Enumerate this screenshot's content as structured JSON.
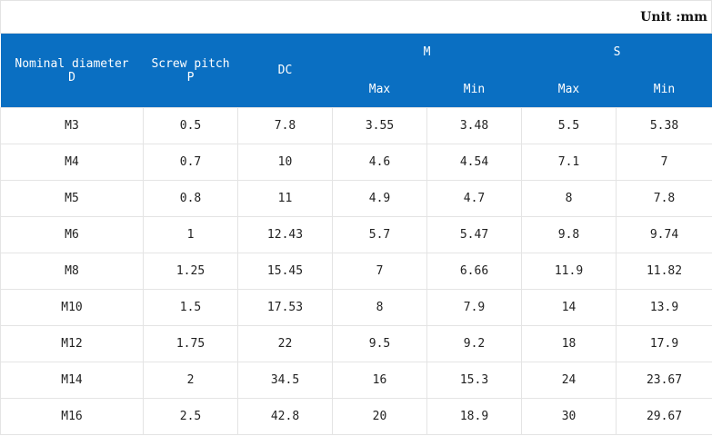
{
  "unit_label": "Unit :mm",
  "headers": {
    "nominal_line1": "Nominal diameter",
    "nominal_line2": "D",
    "pitch_line1": "Screw pitch",
    "pitch_line2": "P",
    "dc": "DC",
    "m": "M",
    "s": "S",
    "m_max": "Max",
    "m_min": "Min",
    "s_max": "Max",
    "s_min": "Min"
  },
  "rows": [
    [
      "M3",
      "0.5",
      "7.8",
      "3.55",
      "3.48",
      "5.5",
      "5.38"
    ],
    [
      "M4",
      "0.7",
      "10",
      "4.6",
      "4.54",
      "7.1",
      "7"
    ],
    [
      "M5",
      "0.8",
      "11",
      "4.9",
      "4.7",
      "8",
      "7.8"
    ],
    [
      "M6",
      "1",
      "12.43",
      "5.7",
      "5.47",
      "9.8",
      "9.74"
    ],
    [
      "M8",
      "1.25",
      "15.45",
      "7",
      "6.66",
      "11.9",
      "11.82"
    ],
    [
      "M10",
      "1.5",
      "17.53",
      "8",
      "7.9",
      "14",
      "13.9"
    ],
    [
      "M12",
      "1.75",
      "22",
      "9.5",
      "9.2",
      "18",
      "17.9"
    ],
    [
      "M14",
      "2",
      "34.5",
      "16",
      "15.3",
      "24",
      "23.67"
    ],
    [
      "M16",
      "2.5",
      "42.8",
      "20",
      "18.9",
      "30",
      "29.67"
    ]
  ],
  "colors": {
    "header_bg": "#0a6fc2",
    "header_text": "#ffffff",
    "grid": "#e4e4e4"
  }
}
